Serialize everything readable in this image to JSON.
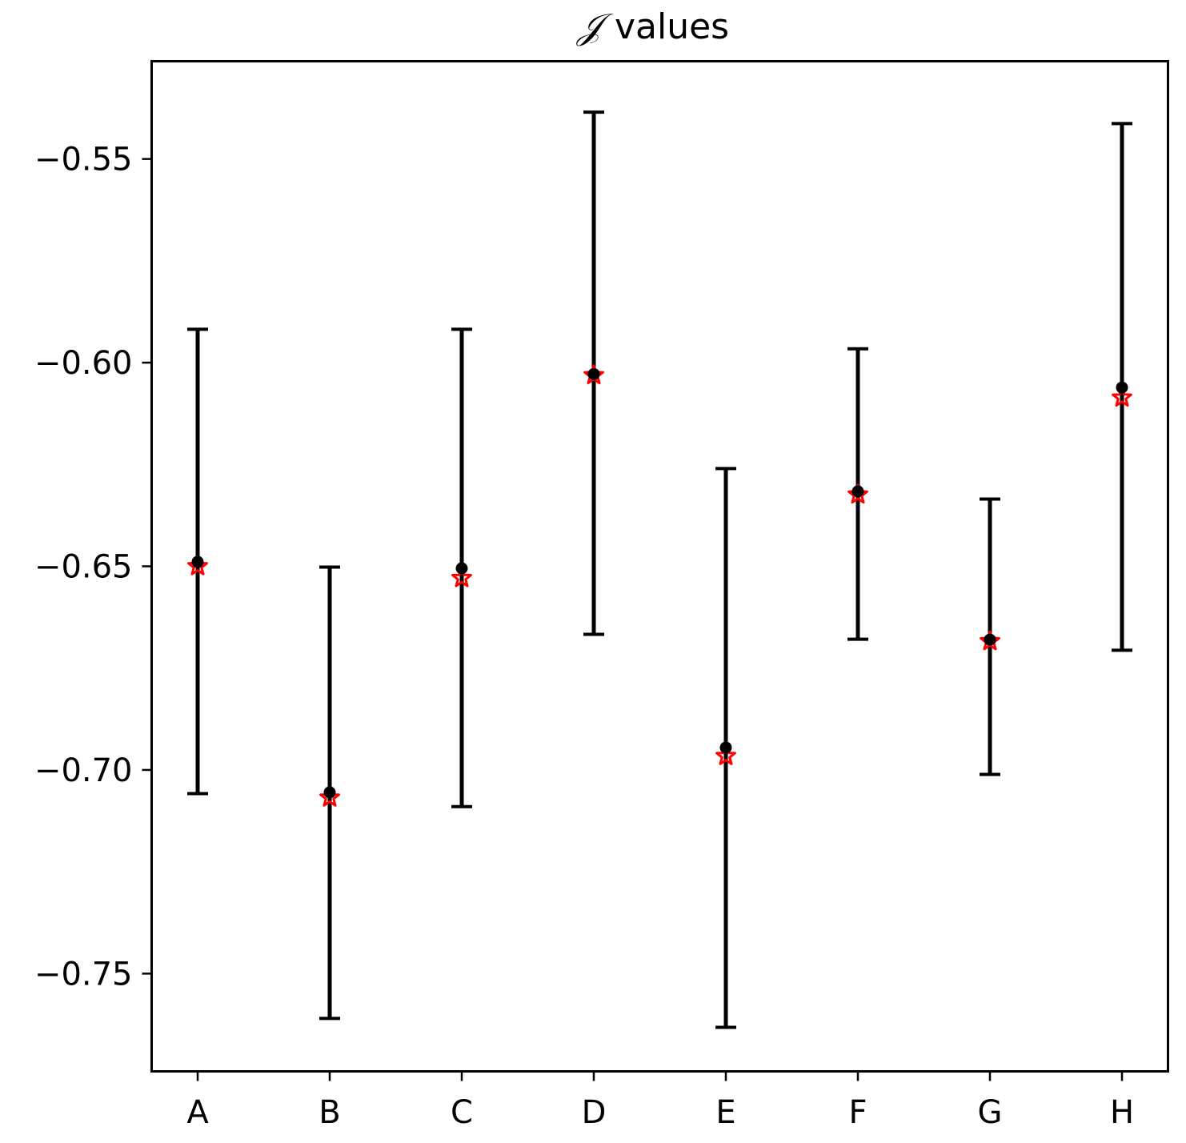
{
  "chart_data": {
    "type": "scatter",
    "title": {
      "symbol": "𝒥",
      "text": "values"
    },
    "xlabel": "",
    "ylabel": "",
    "categories": [
      "A",
      "B",
      "C",
      "D",
      "E",
      "F",
      "G",
      "H"
    ],
    "ylim": [
      -0.774,
      -0.526
    ],
    "yticks": [
      -0.55,
      -0.6,
      -0.65,
      -0.7,
      -0.75
    ],
    "ytick_labels": [
      "−0.55",
      "−0.60",
      "−0.65",
      "−0.70",
      "−0.75"
    ],
    "grid": false,
    "series": [
      {
        "role": "mean-with-errorbars",
        "color": "#000000",
        "marker": "circle",
        "values": [
          -0.6489,
          -0.7055,
          -0.6505,
          -0.6028,
          -0.6945,
          -0.6316,
          -0.668,
          -0.6061
        ],
        "err_low": [
          -0.7058,
          -0.761,
          -0.709,
          -0.6667,
          -0.7632,
          -0.6679,
          -0.7011,
          -0.6706
        ],
        "err_high": [
          -0.5918,
          -0.6502,
          -0.5918,
          -0.5385,
          -0.626,
          -0.5966,
          -0.6335,
          -0.5413
        ]
      },
      {
        "role": "reference",
        "color": "#ff0000",
        "marker": "star",
        "values": [
          -0.65,
          -0.7068,
          -0.6529,
          -0.6031,
          -0.6966,
          -0.6324,
          -0.6684,
          -0.6086
        ]
      }
    ]
  }
}
